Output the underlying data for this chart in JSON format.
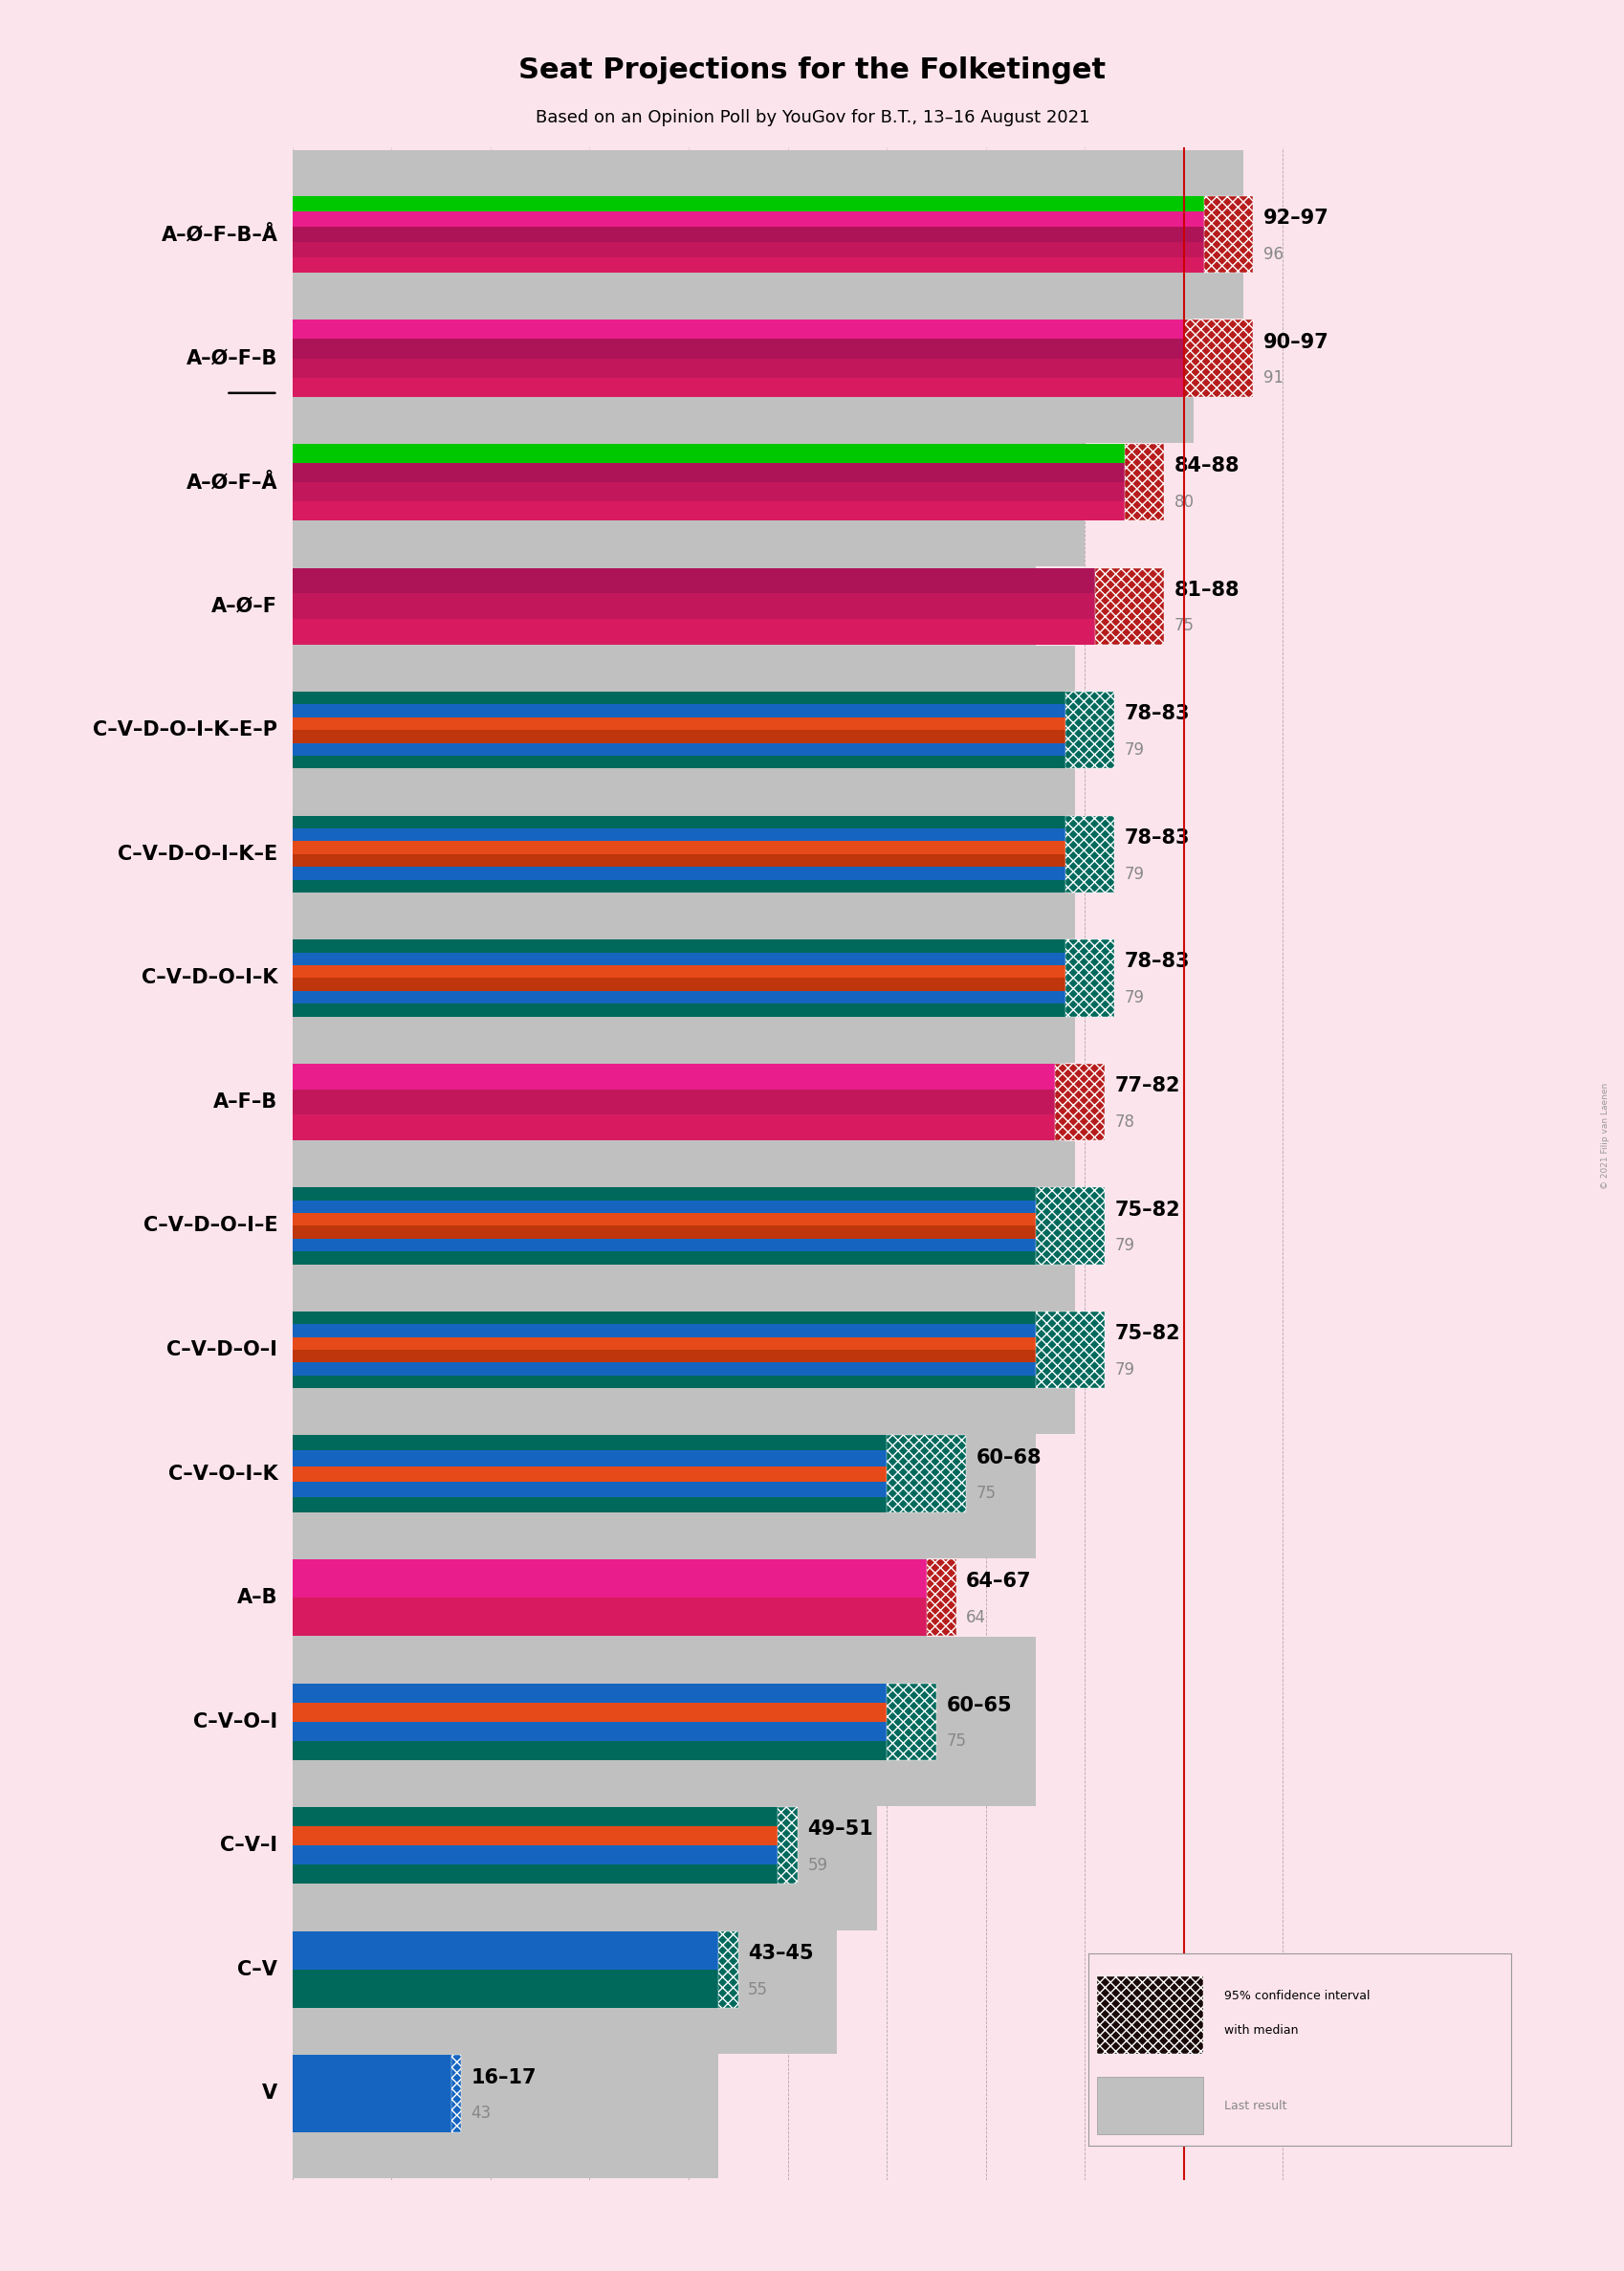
{
  "title": "Seat Projections for the Folketinget",
  "subtitle": "Based on an Opinion Poll by YouGov for B.T., 13–16 August 2021",
  "background_color": "#fce4ec",
  "copyright": "© 2021 Filip van Laenen",
  "coalitions": [
    {
      "label": "A–Ø–F–B–Å",
      "low": 92,
      "high": 97,
      "last": 96,
      "colors": [
        "#d81b60",
        "#c2185b",
        "#ad1457",
        "#e91e8c",
        "#00c800"
      ],
      "ci_color": "#b71c1c",
      "underline": false
    },
    {
      "label": "A–Ø–F–B",
      "low": 90,
      "high": 97,
      "last": 91,
      "colors": [
        "#d81b60",
        "#c2185b",
        "#ad1457",
        "#e91e8c"
      ],
      "ci_color": "#b71c1c",
      "underline": true
    },
    {
      "label": "A–Ø–F–Å",
      "low": 84,
      "high": 88,
      "last": 80,
      "colors": [
        "#d81b60",
        "#c2185b",
        "#ad1457",
        "#00c800"
      ],
      "ci_color": "#b71c1c",
      "underline": false
    },
    {
      "label": "A–Ø–F",
      "low": 81,
      "high": 88,
      "last": 75,
      "colors": [
        "#d81b60",
        "#c2185b",
        "#ad1457"
      ],
      "ci_color": "#b71c1c",
      "underline": false
    },
    {
      "label": "C–V–D–O–I–K–E–P",
      "low": 78,
      "high": 83,
      "last": 79,
      "colors": [
        "#00695c",
        "#1565c0",
        "#bf360c",
        "#e64a19",
        "#1565c0",
        "#00695c"
      ],
      "ci_color": "#00695c",
      "underline": false
    },
    {
      "label": "C–V–D–O–I–K–E",
      "low": 78,
      "high": 83,
      "last": 79,
      "colors": [
        "#00695c",
        "#1565c0",
        "#bf360c",
        "#e64a19",
        "#1565c0",
        "#00695c"
      ],
      "ci_color": "#00695c",
      "underline": false
    },
    {
      "label": "C–V–D–O–I–K",
      "low": 78,
      "high": 83,
      "last": 79,
      "colors": [
        "#00695c",
        "#1565c0",
        "#bf360c",
        "#e64a19",
        "#1565c0",
        "#00695c"
      ],
      "ci_color": "#00695c",
      "underline": false
    },
    {
      "label": "A–F–B",
      "low": 77,
      "high": 82,
      "last": 78,
      "colors": [
        "#d81b60",
        "#c2185b",
        "#e91e8c"
      ],
      "ci_color": "#b71c1c",
      "underline": false
    },
    {
      "label": "C–V–D–O–I–E",
      "low": 75,
      "high": 82,
      "last": 79,
      "colors": [
        "#00695c",
        "#1565c0",
        "#bf360c",
        "#e64a19",
        "#1565c0",
        "#00695c"
      ],
      "ci_color": "#00695c",
      "underline": false
    },
    {
      "label": "C–V–D–O–I",
      "low": 75,
      "high": 82,
      "last": 79,
      "colors": [
        "#00695c",
        "#1565c0",
        "#bf360c",
        "#e64a19",
        "#1565c0",
        "#00695c"
      ],
      "ci_color": "#00695c",
      "underline": false
    },
    {
      "label": "C–V–O–I–K",
      "low": 60,
      "high": 68,
      "last": 75,
      "colors": [
        "#00695c",
        "#1565c0",
        "#e64a19",
        "#1565c0",
        "#00695c"
      ],
      "ci_color": "#00695c",
      "underline": false
    },
    {
      "label": "A–B",
      "low": 64,
      "high": 67,
      "last": 64,
      "colors": [
        "#d81b60",
        "#e91e8c"
      ],
      "ci_color": "#b71c1c",
      "underline": false
    },
    {
      "label": "C–V–O–I",
      "low": 60,
      "high": 65,
      "last": 75,
      "colors": [
        "#00695c",
        "#1565c0",
        "#e64a19",
        "#1565c0"
      ],
      "ci_color": "#00695c",
      "underline": false
    },
    {
      "label": "C–V–I",
      "low": 49,
      "high": 51,
      "last": 59,
      "colors": [
        "#00695c",
        "#1565c0",
        "#e64a19",
        "#00695c"
      ],
      "ci_color": "#00695c",
      "underline": false
    },
    {
      "label": "C–V",
      "low": 43,
      "high": 45,
      "last": 55,
      "colors": [
        "#00695c",
        "#1565c0"
      ],
      "ci_color": "#00695c",
      "underline": false
    },
    {
      "label": "V",
      "low": 16,
      "high": 17,
      "last": 43,
      "colors": [
        "#1565c0"
      ],
      "ci_color": "#1565c0",
      "underline": false
    }
  ],
  "xmax": 105,
  "majority_line": 90,
  "label_fontsize": 15,
  "range_fontsize": 15,
  "last_fontsize": 12
}
